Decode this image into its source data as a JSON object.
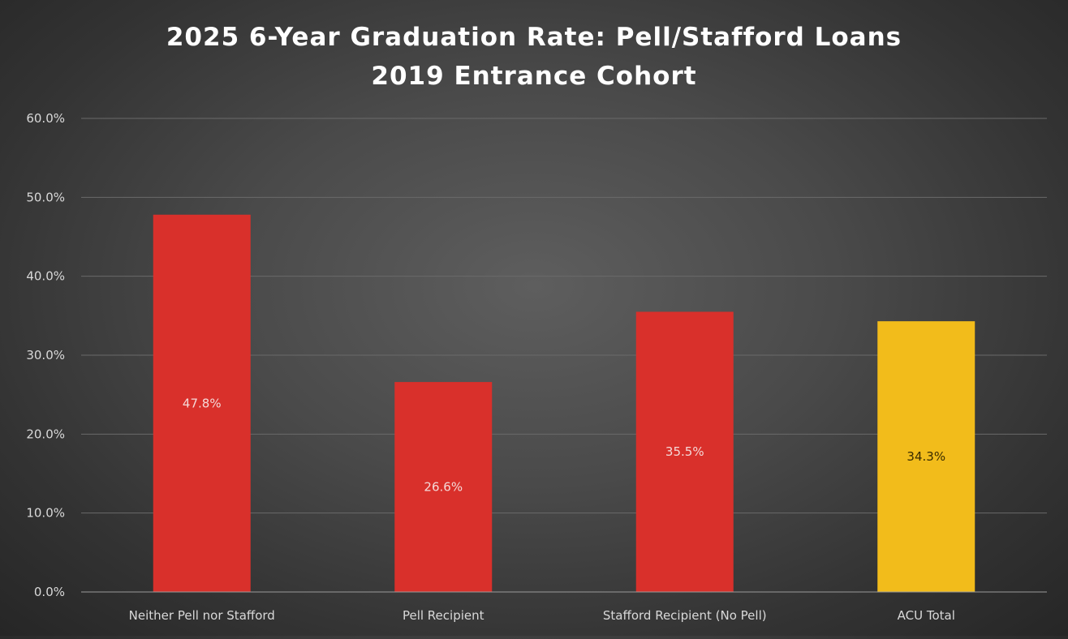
{
  "chart_data": {
    "type": "bar",
    "title": "2025 6-Year Graduation Rate: Pell/Stafford Loans",
    "subtitle": "2019 Entrance Cohort",
    "xlabel": "",
    "ylabel": "",
    "categories": [
      "Neither Pell nor Stafford",
      "Pell Recipient",
      "Stafford Recipient (No Pell)",
      "ACU Total"
    ],
    "values": [
      47.8,
      26.6,
      35.5,
      34.3
    ],
    "data_labels": [
      "47.8%",
      "26.6%",
      "35.5%",
      "34.3%"
    ],
    "ylim": [
      0,
      60
    ],
    "yticks": [
      0,
      10,
      20,
      30,
      40,
      50,
      60
    ],
    "ytick_labels": [
      "0.0%",
      "10.0%",
      "20.0%",
      "30.0%",
      "40.0%",
      "50.0%",
      "60.0%"
    ],
    "grid": true,
    "legend": "none",
    "bar_colors": [
      "#d9302b",
      "#d9302b",
      "#d9302b",
      "#f2bc1b"
    ],
    "label_colors": [
      "#f4d9d8",
      "#f4d9d8",
      "#f4d9d8",
      "#3a2c00"
    ]
  }
}
